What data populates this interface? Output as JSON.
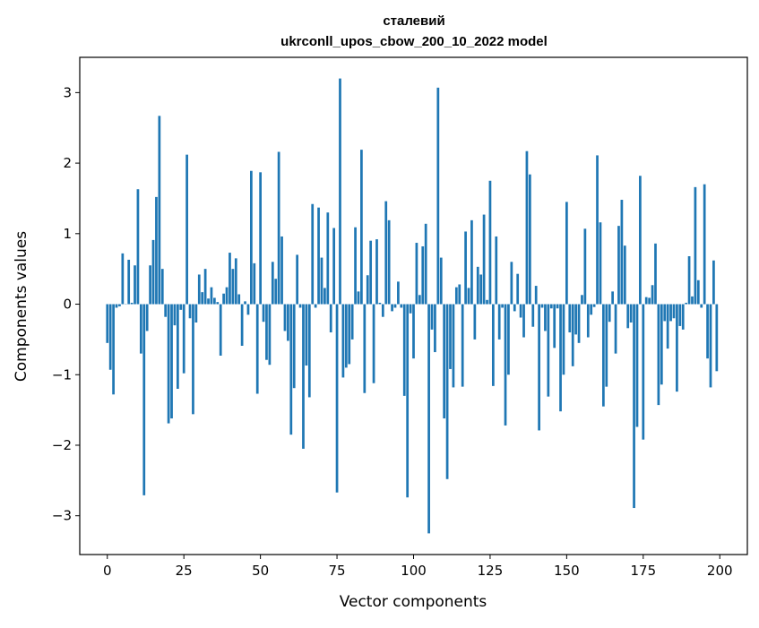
{
  "chart_data": {
    "type": "bar",
    "title_lines": [
      "сталевий",
      "ukrconll_upos_cbow_200_10_2022 model"
    ],
    "xlabel": "Vector components",
    "ylabel": "Components values",
    "xlim": [
      -9,
      209
    ],
    "ylim": [
      -3.55,
      3.5
    ],
    "xticks": [
      0,
      25,
      50,
      75,
      100,
      125,
      150,
      175,
      200
    ],
    "yticks": [
      -3,
      -2,
      -1,
      0,
      1,
      2,
      3
    ],
    "ytick_labels": [
      "−3",
      "−2",
      "−1",
      "0",
      "1",
      "2",
      "3"
    ],
    "grid": false,
    "bar_color": "#1f77b4",
    "values": [
      -0.55,
      -0.93,
      -1.28,
      -0.05,
      -0.03,
      0.72,
      0.0,
      0.63,
      0.02,
      0.55,
      1.63,
      -0.7,
      -2.71,
      -0.38,
      0.55,
      0.91,
      1.52,
      2.67,
      0.5,
      -0.18,
      -1.69,
      -1.62,
      -0.3,
      -1.2,
      -0.08,
      -0.98,
      2.12,
      -0.2,
      -1.56,
      -0.26,
      0.42,
      0.17,
      0.5,
      0.08,
      0.24,
      0.09,
      0.03,
      -0.73,
      0.15,
      0.24,
      0.73,
      0.5,
      0.65,
      0.14,
      -0.59,
      0.04,
      -0.15,
      1.89,
      0.58,
      -1.27,
      1.87,
      -0.25,
      -0.79,
      -0.86,
      0.6,
      0.36,
      2.16,
      0.96,
      -0.38,
      -0.52,
      -1.85,
      -1.19,
      0.7,
      -0.05,
      -2.05,
      -0.87,
      -1.32,
      1.42,
      -0.05,
      1.37,
      0.66,
      0.23,
      1.3,
      -0.4,
      1.08,
      -2.67,
      3.2,
      -1.04,
      -0.9,
      -0.85,
      -0.5,
      1.09,
      0.18,
      2.19,
      -1.26,
      0.41,
      0.9,
      -1.12,
      0.92,
      0.02,
      -0.18,
      1.46,
      1.19,
      -0.1,
      -0.05,
      0.32,
      -0.05,
      -1.3,
      -2.74,
      -0.13,
      -0.77,
      0.87,
      0.13,
      0.82,
      1.14,
      -3.25,
      -0.36,
      -0.68,
      3.07,
      0.66,
      -1.62,
      -2.48,
      -0.92,
      -1.18,
      0.24,
      0.28,
      -1.17,
      1.03,
      0.23,
      1.19,
      -0.5,
      0.53,
      0.42,
      1.27,
      0.06,
      1.75,
      -1.16,
      0.96,
      -0.5,
      -0.05,
      -1.72,
      -1.0,
      0.6,
      -0.1,
      0.43,
      -0.19,
      -0.47,
      2.17,
      1.84,
      -0.32,
      0.26,
      -1.79,
      -0.05,
      -0.38,
      -1.31,
      -0.06,
      -0.62,
      -0.06,
      -1.52,
      -1.0,
      1.45,
      -0.4,
      -0.88,
      -0.43,
      -0.55,
      0.13,
      1.07,
      -0.47,
      -0.15,
      -0.04,
      2.11,
      1.16,
      -1.45,
      -1.17,
      -0.25,
      0.18,
      -0.7,
      1.11,
      1.48,
      0.83,
      -0.34,
      -0.26,
      -2.89,
      -1.74,
      1.82,
      -1.92,
      0.1,
      0.09,
      0.27,
      0.86,
      -1.43,
      -1.14,
      -0.24,
      -0.63,
      -0.24,
      -0.2,
      -1.24,
      -0.31,
      -0.36,
      0.02,
      0.68,
      0.11,
      1.66,
      0.34,
      -0.05,
      1.7,
      -0.77,
      -1.18,
      0.62,
      -0.95
    ]
  }
}
